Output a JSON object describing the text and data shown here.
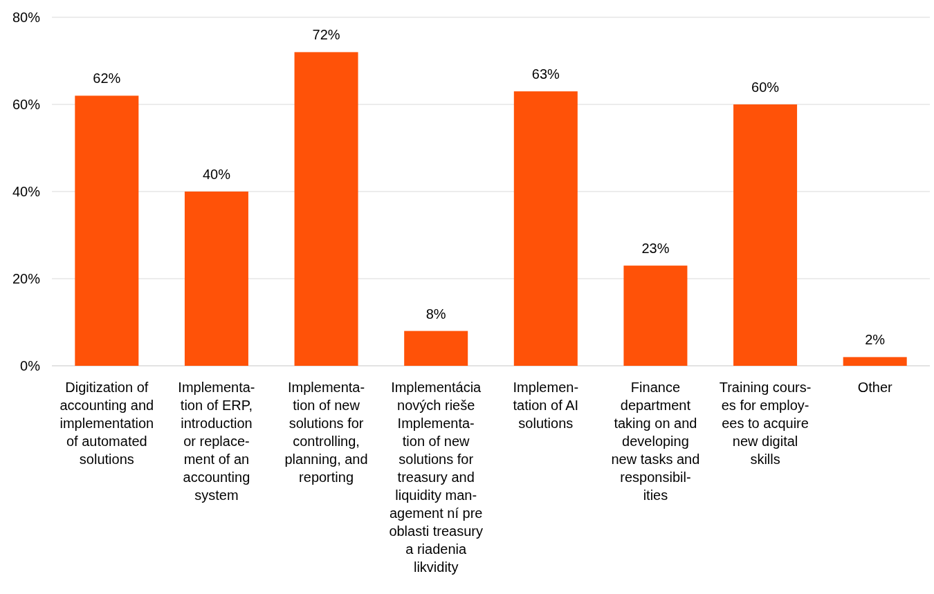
{
  "chart_data": {
    "type": "bar",
    "categories": [
      "Digitization of\naccounting and\nimplementation\nof automated\nsolutions",
      "Implementa-\ntion of ERP,\nintroduction\nor replace-\nment of an\naccounting\nsystem",
      "Implementa-\ntion of new\nsolutions for\ncontrolling,\nplanning, and\nreporting",
      "Implementácia\nnových rieše\nImplementa-\ntion of new\nsolutions for\ntreasury and\nliquidity man-\nagement ní pre\noblasti treasury\na riadenia\nlikvidity",
      "Implemen-\ntation of AI\nsolutions",
      "Finance\ndepartment\ntaking on and\ndeveloping\nnew tasks and\nresponsibil-\nities",
      "Training cours-\nes for employ-\nees to acquire\nnew digital\nskills",
      "Other"
    ],
    "values": [
      62,
      40,
      72,
      8,
      63,
      23,
      60,
      2
    ],
    "value_labels": [
      "62%",
      "40%",
      "72%",
      "8%",
      "63%",
      "23%",
      "60%",
      "2%"
    ],
    "color": "#ff5208",
    "ylim": [
      0,
      80
    ],
    "yticks": [
      {
        "value": 0,
        "label": "0%"
      },
      {
        "value": 20,
        "label": "20%"
      },
      {
        "value": 40,
        "label": "40%"
      },
      {
        "value": 60,
        "label": "60%"
      },
      {
        "value": 80,
        "label": "80%"
      }
    ],
    "grid": "y"
  }
}
